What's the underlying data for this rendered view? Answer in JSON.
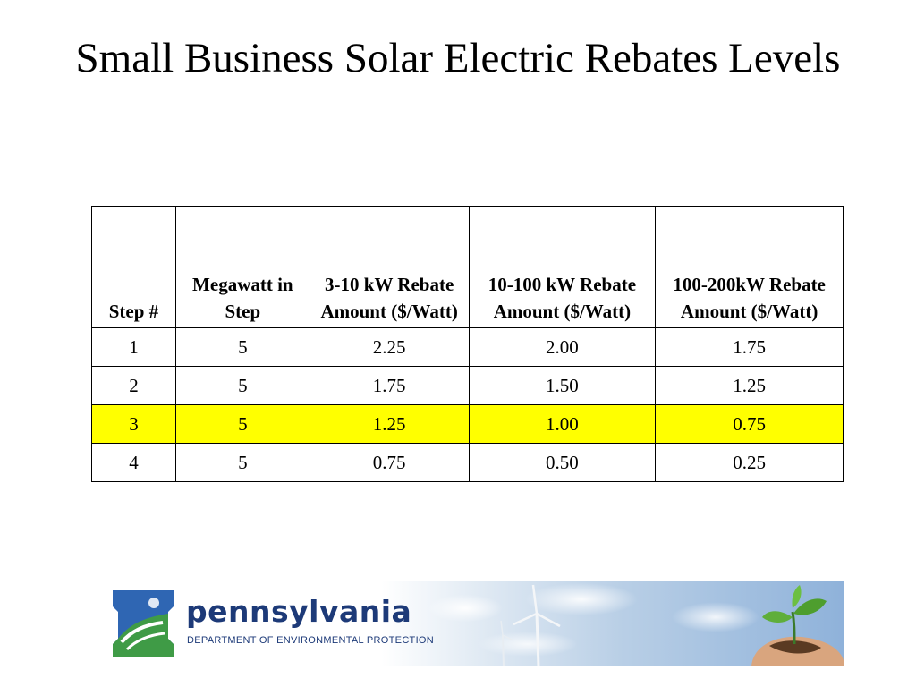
{
  "slide": {
    "title": "Small Business Solar Electric Rebates Levels"
  },
  "table": {
    "headers": [
      "Step #",
      "Megawatt in Step",
      "3-10 kW Rebate Amount ($/Watt)",
      "10-100 kW Rebate Amount ($/Watt)",
      "100-200kW Rebate Amount ($/Watt)"
    ],
    "rows": [
      [
        "1",
        "5",
        "2.25",
        "2.00",
        "1.75"
      ],
      [
        "2",
        "5",
        "1.75",
        "1.50",
        "1.25"
      ],
      [
        "3",
        "5",
        "1.25",
        "1.00",
        "0.75"
      ],
      [
        "4",
        "5",
        "0.75",
        "0.50",
        "0.25"
      ]
    ],
    "highlighted_row": 2,
    "highlight_color": "#ffff00"
  },
  "banner": {
    "brand": "pennsylvania",
    "department": "DEPARTMENT OF ENVIRONMENTAL PROTECTION",
    "brand_color": "#1d3a78",
    "icons": [
      "keystone-logo-icon",
      "wind-turbine-icon",
      "seedling-in-hands-icon"
    ]
  }
}
